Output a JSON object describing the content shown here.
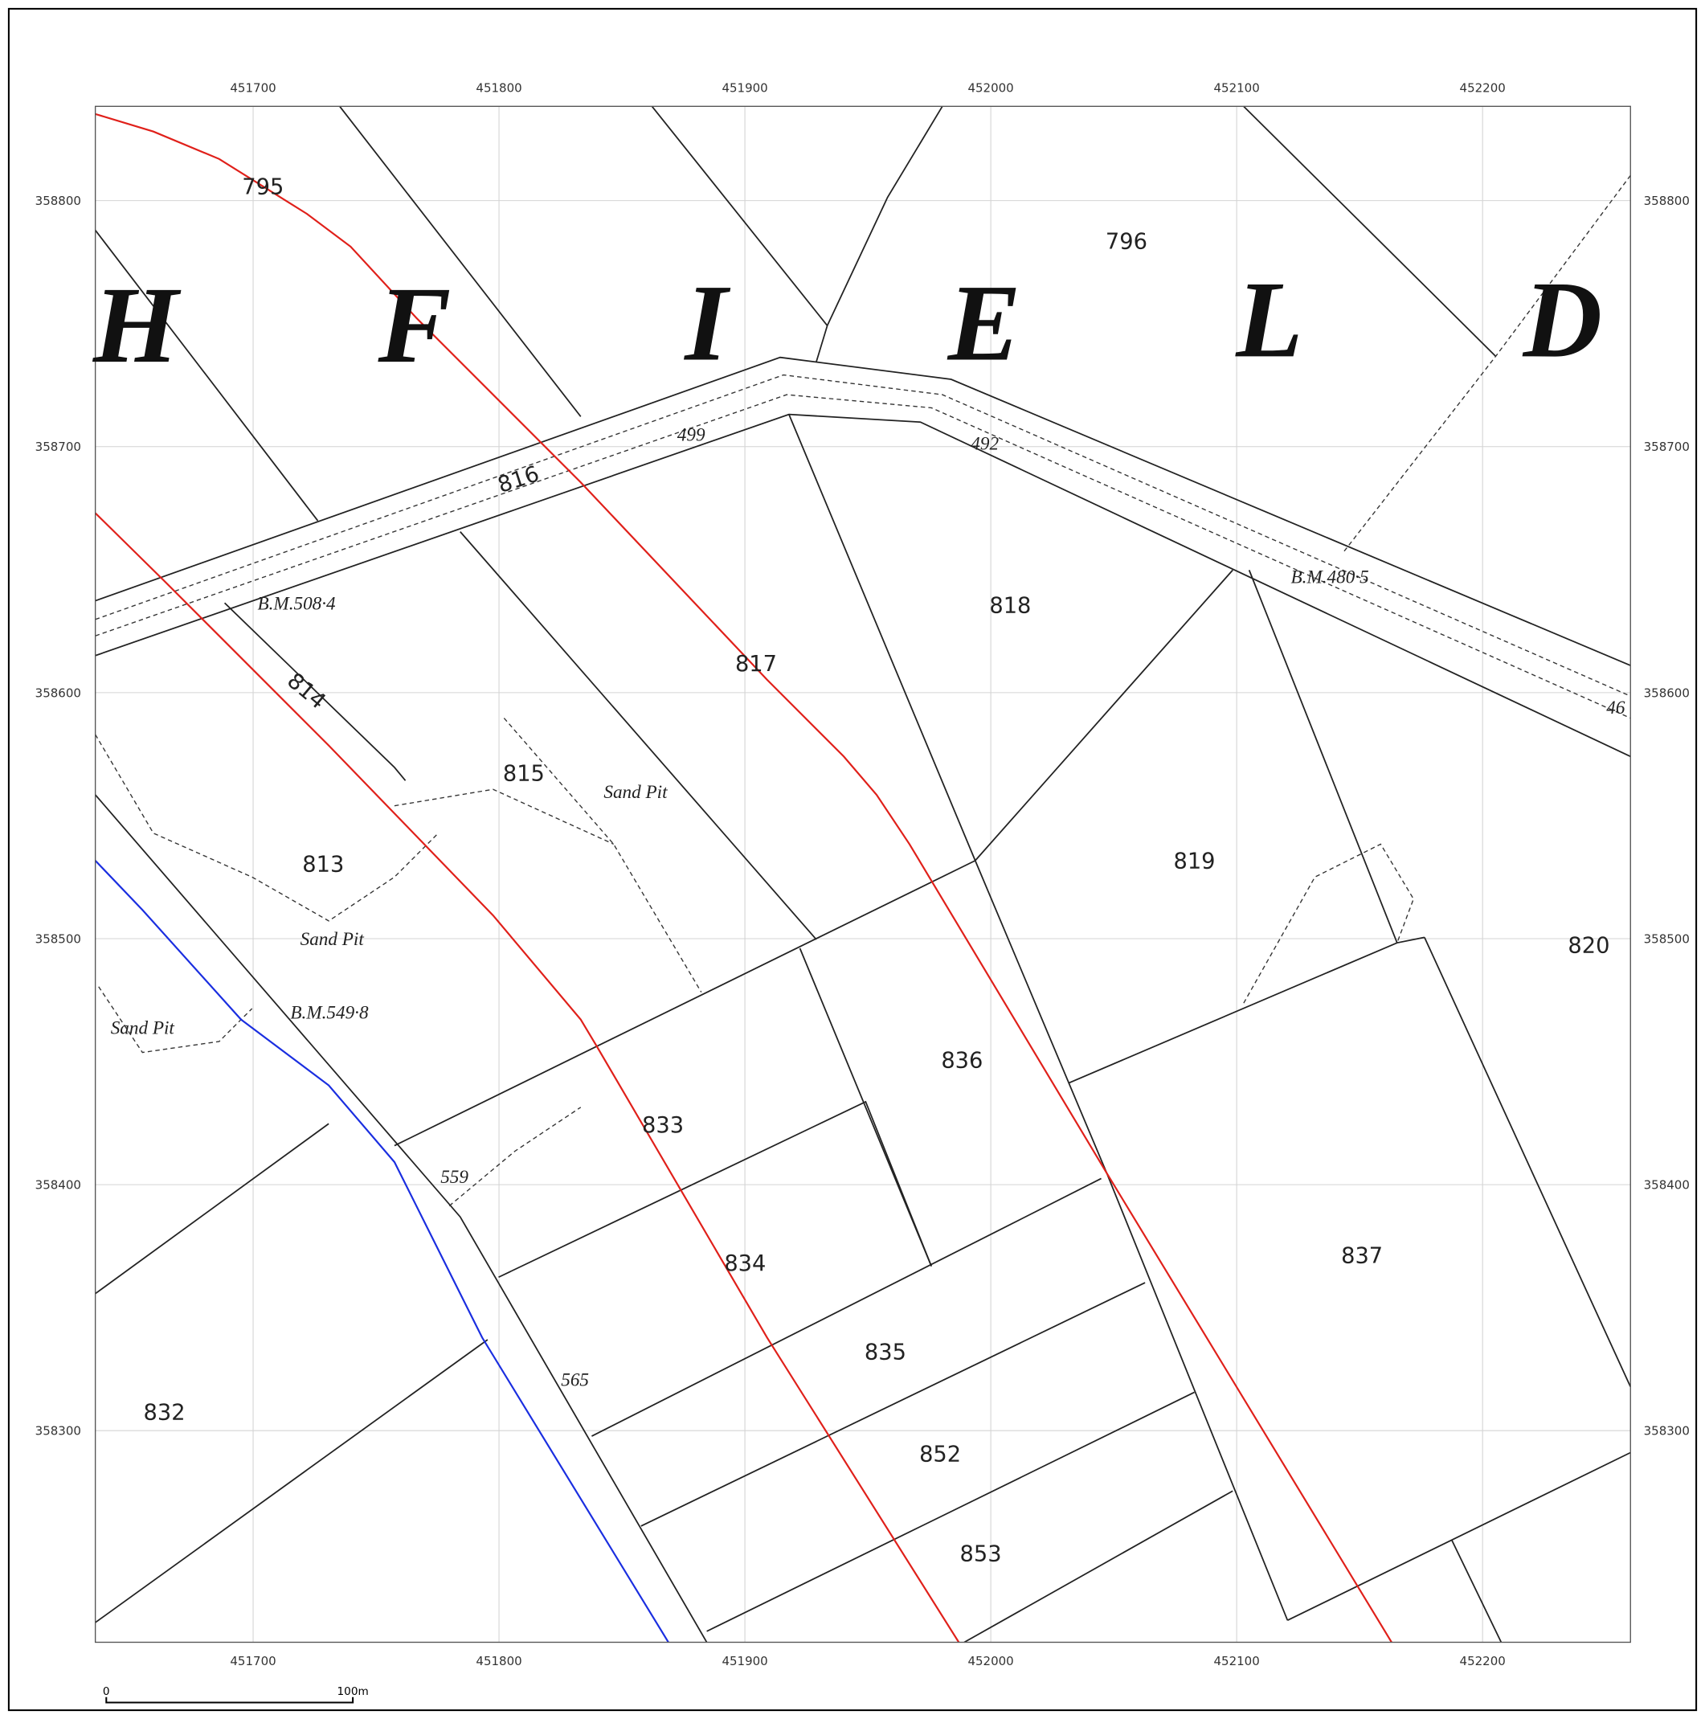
{
  "grid": {
    "eastings": [
      451700,
      451800,
      451900,
      452000,
      452100,
      452200
    ],
    "northings": [
      358800,
      358700,
      358600,
      358500,
      358400,
      358300
    ]
  },
  "lettering": [
    "H",
    "F",
    "I",
    "E",
    "L",
    "D"
  ],
  "parcels": [
    "795",
    "796",
    "816",
    "817",
    "818",
    "814",
    "815",
    "813",
    "819",
    "820",
    "836",
    "833",
    "834",
    "835",
    "837",
    "832",
    "852",
    "853"
  ],
  "annotations": [
    "Sand Pit",
    "Sand Pit",
    "Sand Pit",
    "B.M.508·4",
    "B.M.549·8",
    "B.M.480·5",
    "499",
    "492",
    "559",
    "565",
    "46"
  ],
  "scale_bar": {
    "start": "0",
    "end": "100m"
  }
}
